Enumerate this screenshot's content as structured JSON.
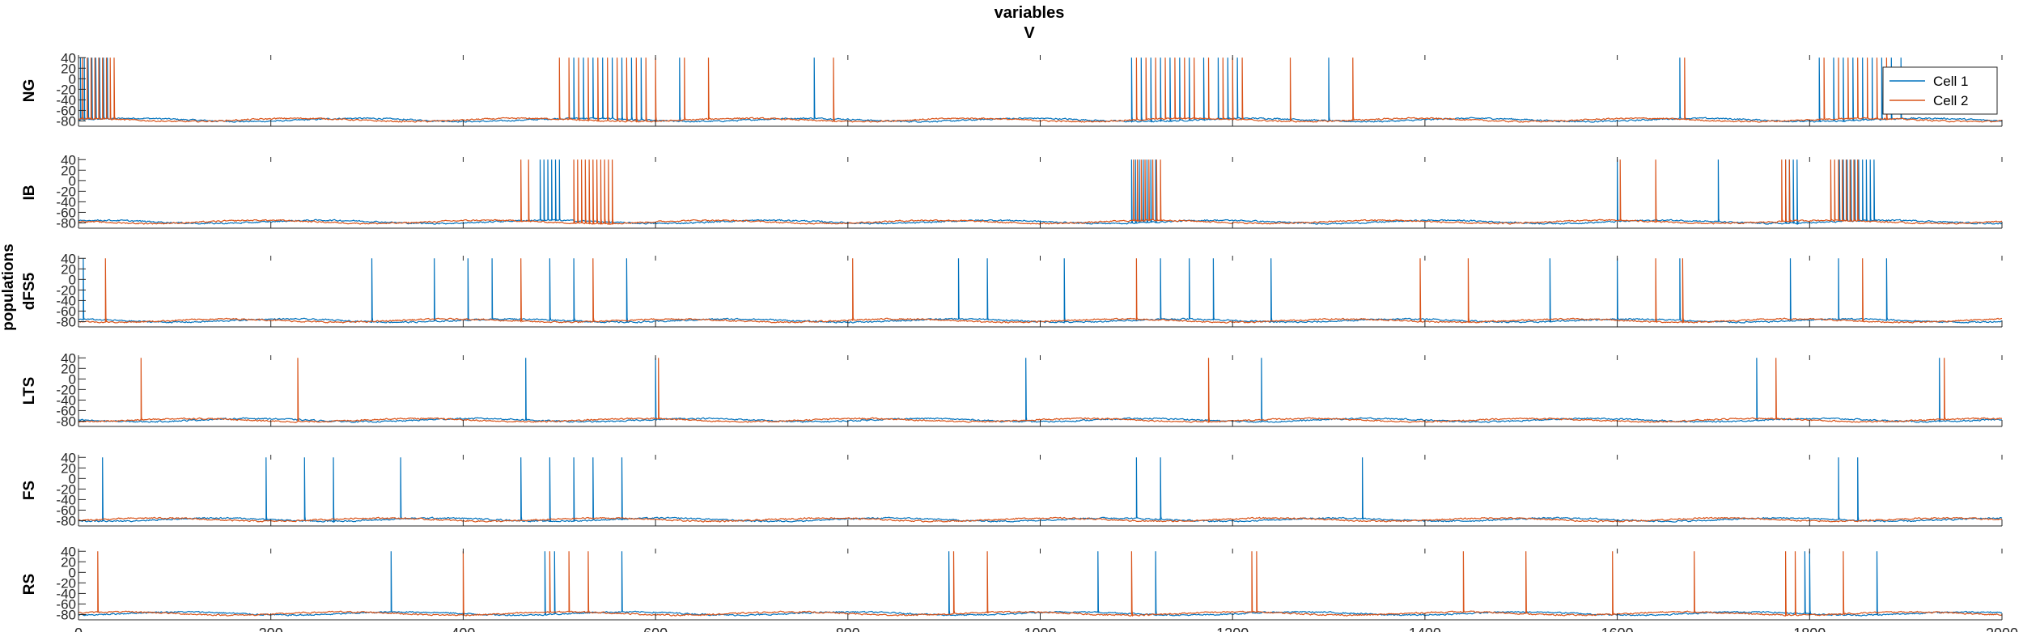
{
  "chart_data": {
    "type": "line",
    "title": "variables",
    "subtitle": "V",
    "ylabel": "populations",
    "xlim": [
      0,
      2000
    ],
    "xticks": [
      0,
      200,
      400,
      600,
      800,
      1000,
      1200,
      1400,
      1600,
      1800,
      2000
    ],
    "ylim": [
      -90,
      45
    ],
    "yticks": [
      40,
      20,
      0,
      -20,
      -40,
      -60,
      -80
    ],
    "grid": false,
    "legend": {
      "placement": "top-right",
      "entries": [
        "Cell 1",
        "Cell 2"
      ]
    },
    "colors": {
      "Cell 1": "#0072BD",
      "Cell 2": "#D95319"
    },
    "baseline_mV": -78,
    "panels": [
      {
        "label": "NG",
        "series": [
          {
            "name": "Cell 1",
            "spikes": [
              2,
              6,
              10,
              14,
              18,
              22,
              26,
              30,
              515,
              525,
              535,
              545,
              555,
              565,
              575,
              585,
              625,
              765,
              1095,
              1105,
              1115,
              1125,
              1135,
              1145,
              1155,
              1170,
              1185,
              1195,
              1205,
              1300,
              1665,
              1810,
              1825,
              1835,
              1845,
              1855,
              1865,
              1875,
              1885,
              1895
            ]
          },
          {
            "name": "Cell 2",
            "spikes": [
              4,
              9,
              13,
              17,
              21,
              25,
              29,
              33,
              37,
              500,
              510,
              520,
              530,
              540,
              550,
              560,
              570,
              580,
              590,
              600,
              630,
              655,
              785,
              1100,
              1110,
              1120,
              1130,
              1140,
              1150,
              1160,
              1175,
              1190,
              1200,
              1210,
              1260,
              1325,
              1670,
              1815,
              1830,
              1840,
              1850,
              1860,
              1870,
              1880
            ]
          }
        ]
      },
      {
        "label": "IB",
        "series": [
          {
            "name": "Cell 1",
            "spikes": [
              480,
              484,
              488,
              492,
              496,
              500,
              1095,
              1099,
              1103,
              1107,
              1111,
              1115,
              1120,
              1600,
              1705,
              1775,
              1779,
              1783,
              1787,
              1831,
              1835,
              1839,
              1843,
              1847,
              1851,
              1855,
              1859,
              1863,
              1867
            ]
          },
          {
            "name": "Cell 2",
            "spikes": [
              460,
              468,
              515,
              519,
              523,
              527,
              531,
              535,
              539,
              543,
              547,
              551,
              555,
              1097,
              1101,
              1105,
              1109,
              1113,
              1117,
              1121,
              1125,
              1603,
              1640,
              1771,
              1775,
              1779,
              1822,
              1826,
              1830,
              1834,
              1838,
              1842,
              1846,
              1850
            ]
          }
        ]
      },
      {
        "label": "dFS5",
        "series": [
          {
            "name": "Cell 1",
            "spikes": [
              5,
              305,
              370,
              405,
              430,
              490,
              515,
              570,
              915,
              945,
              1025,
              1125,
              1155,
              1180,
              1240,
              1530,
              1600,
              1665,
              1780,
              1830,
              1880
            ]
          },
          {
            "name": "Cell 2",
            "spikes": [
              28,
              460,
              535,
              805,
              1100,
              1395,
              1445,
              1640,
              1668,
              1855
            ]
          }
        ]
      },
      {
        "label": "LTS",
        "series": [
          {
            "name": "Cell 1",
            "spikes": [
              465,
              600,
              985,
              1230,
              1745,
              1935
            ]
          },
          {
            "name": "Cell 2",
            "spikes": [
              65,
              228,
              603,
              1175,
              1765,
              1940
            ]
          }
        ]
      },
      {
        "label": "FS",
        "series": [
          {
            "name": "Cell 1",
            "spikes": [
              25,
              195,
              235,
              265,
              335,
              460,
              490,
              515,
              535,
              565,
              1100,
              1125,
              1335,
              1830,
              1850
            ]
          },
          {
            "name": "Cell 2",
            "spikes": []
          }
        ]
      },
      {
        "label": "RS",
        "series": [
          {
            "name": "Cell 1",
            "spikes": [
              325,
              485,
              495,
              565,
              905,
              1060,
              1120,
              1795,
              1800,
              1870
            ]
          },
          {
            "name": "Cell 2",
            "spikes": [
              20,
              400,
              490,
              510,
              530,
              910,
              945,
              1095,
              1220,
              1225,
              1440,
              1505,
              1595,
              1680,
              1775,
              1785,
              1835
            ]
          }
        ]
      }
    ]
  }
}
